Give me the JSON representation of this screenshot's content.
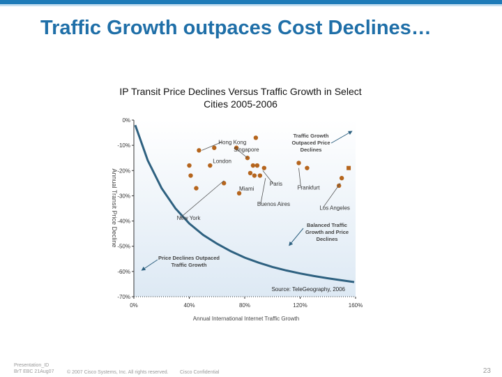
{
  "slide": {
    "title": "Traffic Growth outpaces Cost Declines…",
    "footer_line1": "Presentation_ID",
    "footer_line2": "BrT EBC  21Aug07",
    "copyright": "© 2007 Cisco Systems, Inc. All rights reserved.",
    "confidential": "Cisco Confidential",
    "page_number": "23"
  },
  "colors": {
    "accent": "#1f6fa8",
    "bar": "#1e7bb8",
    "curve": "#2e6180",
    "point": "#b5651d",
    "plot_bg_top": "#ffffff",
    "plot_bg_bottom": "#dde9f4"
  },
  "chart_data": {
    "type": "scatter",
    "title": "IP Transit Price Declines Versus Traffic Growth in Select Cities 2005-2006",
    "xlabel": "Annual International Internet Traffic Growth",
    "ylabel": "Annual Transit Price Decline",
    "xlim": [
      0,
      160
    ],
    "ylim": [
      -70,
      0
    ],
    "x_ticks": [
      0,
      40,
      80,
      120,
      160
    ],
    "x_tick_labels": [
      "0%",
      "40%",
      "80%",
      "120%",
      "160%"
    ],
    "y_ticks": [
      0,
      -10,
      -20,
      -30,
      -40,
      -50,
      -60,
      -70
    ],
    "y_tick_labels": [
      "0%",
      "-10%",
      "-20%",
      "-30%",
      "-40%",
      "-50%",
      "-60%",
      "-70%"
    ],
    "source": "Source: TeleGeography, 2006",
    "curve": [
      [
        1,
        -2
      ],
      [
        10,
        -16
      ],
      [
        20,
        -27
      ],
      [
        30,
        -35
      ],
      [
        40,
        -41
      ],
      [
        50,
        -45.5
      ],
      [
        60,
        -49
      ],
      [
        70,
        -52
      ],
      [
        80,
        -54.5
      ],
      [
        90,
        -56.5
      ],
      [
        100,
        -58.2
      ],
      [
        110,
        -59.6
      ],
      [
        120,
        -60.8
      ],
      [
        130,
        -61.8
      ],
      [
        140,
        -62.7
      ],
      [
        150,
        -63.5
      ],
      [
        159,
        -64.2
      ]
    ],
    "points": [
      {
        "x": 47,
        "y": -12,
        "label": ""
      },
      {
        "x": 58,
        "y": -11,
        "label": ""
      },
      {
        "x": 74,
        "y": -11,
        "label": ""
      },
      {
        "x": 88,
        "y": -7,
        "label": ""
      },
      {
        "x": 40,
        "y": -18,
        "label": ""
      },
      {
        "x": 55,
        "y": -18,
        "label": ""
      },
      {
        "x": 82,
        "y": -15,
        "label": ""
      },
      {
        "x": 86,
        "y": -18,
        "label": ""
      },
      {
        "x": 89,
        "y": -18,
        "label": ""
      },
      {
        "x": 94,
        "y": -19,
        "label": ""
      },
      {
        "x": 41,
        "y": -22,
        "label": ""
      },
      {
        "x": 84,
        "y": -21,
        "label": ""
      },
      {
        "x": 87,
        "y": -22,
        "label": ""
      },
      {
        "x": 91,
        "y": -22,
        "label": ""
      },
      {
        "x": 45,
        "y": -27,
        "label": ""
      },
      {
        "x": 65,
        "y": -25,
        "label": ""
      },
      {
        "x": 76,
        "y": -29,
        "label": ""
      },
      {
        "x": 119,
        "y": -17,
        "label": ""
      },
      {
        "x": 125,
        "y": -19,
        "label": ""
      },
      {
        "x": 150,
        "y": -23,
        "label": ""
      },
      {
        "x": 148,
        "y": -26,
        "label": ""
      },
      {
        "x": 155,
        "y": -19,
        "label": ""
      }
    ],
    "annotations": [
      {
        "text": "Hong Kong",
        "x": 61,
        "y": -9.5,
        "target": [
          49,
          -12
        ]
      },
      {
        "text": "Singapore",
        "x": 72,
        "y": -12.5,
        "target": [
          82,
          -15
        ]
      },
      {
        "text": "London",
        "x": 57,
        "y": -17,
        "target": null
      },
      {
        "text": "Paris",
        "x": 98,
        "y": -26,
        "target": [
          93,
          -20
        ]
      },
      {
        "text": "Frankfurt",
        "x": 118,
        "y": -27.5,
        "target": [
          119,
          -19
        ]
      },
      {
        "text": "Miami",
        "x": 76,
        "y": -28,
        "target": null
      },
      {
        "text": "Buenos Aires",
        "x": 89,
        "y": -34,
        "target": [
          95,
          -23
        ]
      },
      {
        "text": "Los Angeles",
        "x": 134,
        "y": -35.5,
        "target": [
          149,
          -25
        ]
      },
      {
        "text": "New York",
        "x": 31,
        "y": -39.5,
        "target": [
          65,
          -24
        ]
      }
    ],
    "region_labels": [
      {
        "lines": [
          "Traffic Growth",
          "Outpaced Price",
          "Declines"
        ],
        "arrow": "up-right"
      },
      {
        "lines": [
          "Balanced Traffic",
          "Growth and Price",
          "Declines"
        ],
        "arrow": "down-left"
      },
      {
        "lines": [
          "Price Declines Outpaced",
          "Traffic Growth"
        ],
        "arrow": "down-left"
      }
    ]
  }
}
